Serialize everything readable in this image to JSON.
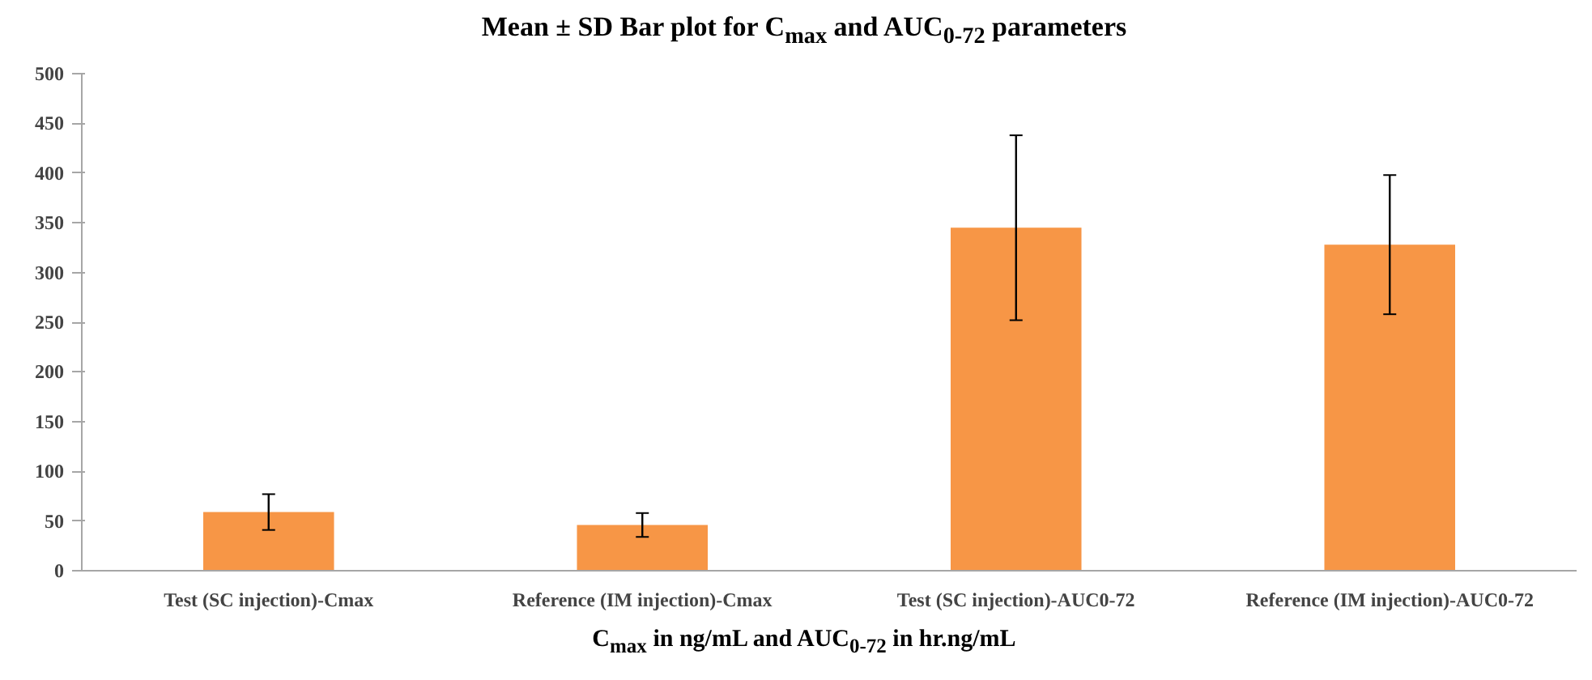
{
  "chart_data": {
    "type": "bar",
    "title": "Mean ± SD Bar plot for C$_{max}$ and AUC$_{0-72}$ parameters",
    "xlabel": "C$_{max}$ in ng/mL and AUC$_{0-72}$ in hr.ng/mL",
    "categories": [
      "Test (SC injection)-Cmax",
      "Reference (IM injection)-Cmax",
      "Test (SC injection)-AUC0-72",
      "Reference (IM injection)-AUC0-72"
    ],
    "values": [
      59,
      46,
      345,
      328
    ],
    "errors": [
      18,
      12,
      93,
      70
    ],
    "color": "#f79646",
    "ylim": [
      0,
      500
    ],
    "yticks": [
      0,
      50,
      100,
      150,
      200,
      250,
      300,
      350,
      400,
      450,
      500
    ],
    "grid": false
  }
}
